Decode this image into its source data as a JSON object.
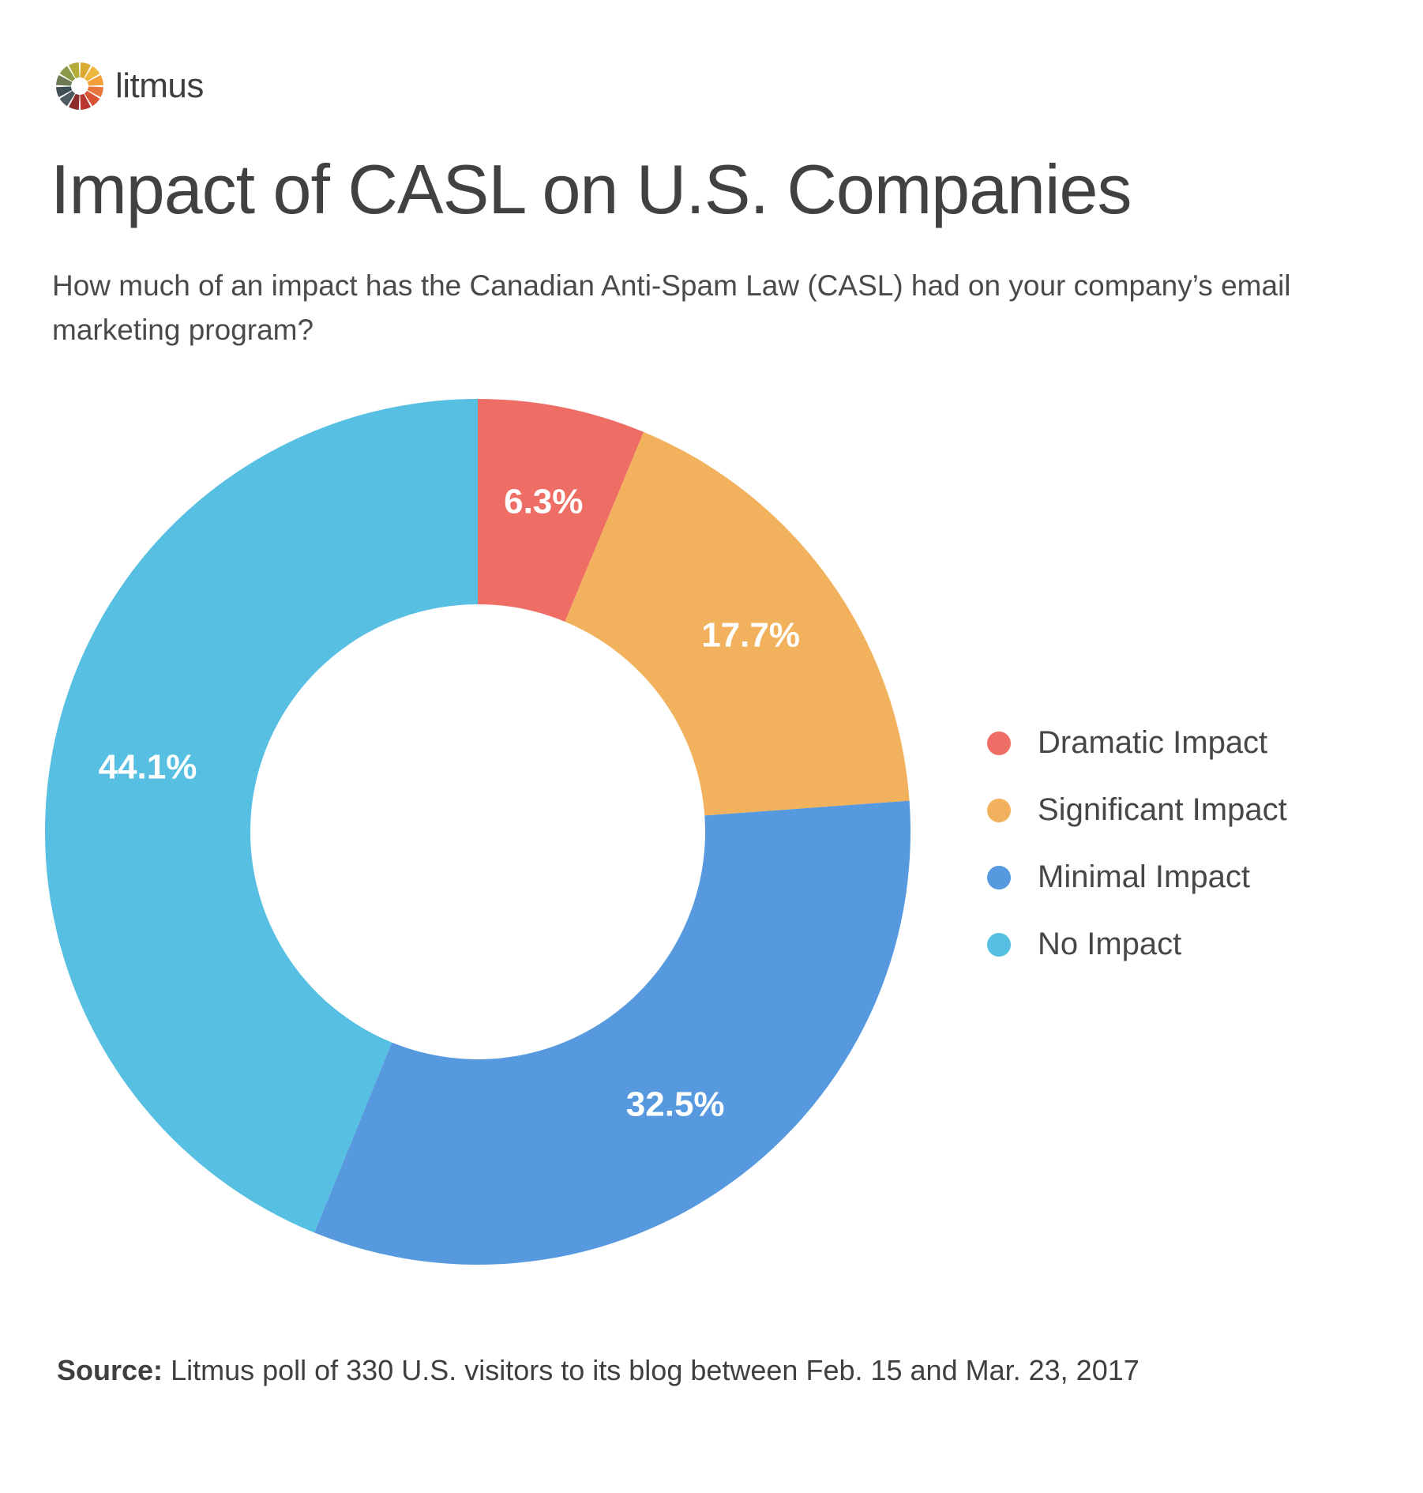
{
  "brand": {
    "name": "litmus",
    "logo_colors": [
      "#d9a930",
      "#eeb73e",
      "#f29f39",
      "#e9763a",
      "#d85536",
      "#b8372f",
      "#8c2d2b",
      "#4e5c62",
      "#3f4f55",
      "#6d7a55",
      "#8a9a48",
      "#b3ab3a"
    ]
  },
  "chart_data": {
    "type": "pie",
    "donut": true,
    "title": "Impact of CASL on U.S. Companies",
    "subtitle": "How much of an impact has the Canadian Anti-Spam Law (CASL) had on your company’s email marketing program?",
    "categories": [
      "Dramatic Impact",
      "Significant Impact",
      "Minimal Impact",
      "No Impact"
    ],
    "values": [
      6.3,
      17.7,
      32.5,
      44.1
    ],
    "value_labels": [
      "6.3%",
      "17.7%",
      "32.5%",
      "44.1%"
    ],
    "colors": [
      "#ee6e66",
      "#f2b15c",
      "#5699de",
      "#56bfe2"
    ],
    "legend_position": "right",
    "source_label": "Source:",
    "source_text": "Litmus poll of 330 U.S. visitors to its blog between Feb. 15 and Mar. 23, 2017"
  }
}
